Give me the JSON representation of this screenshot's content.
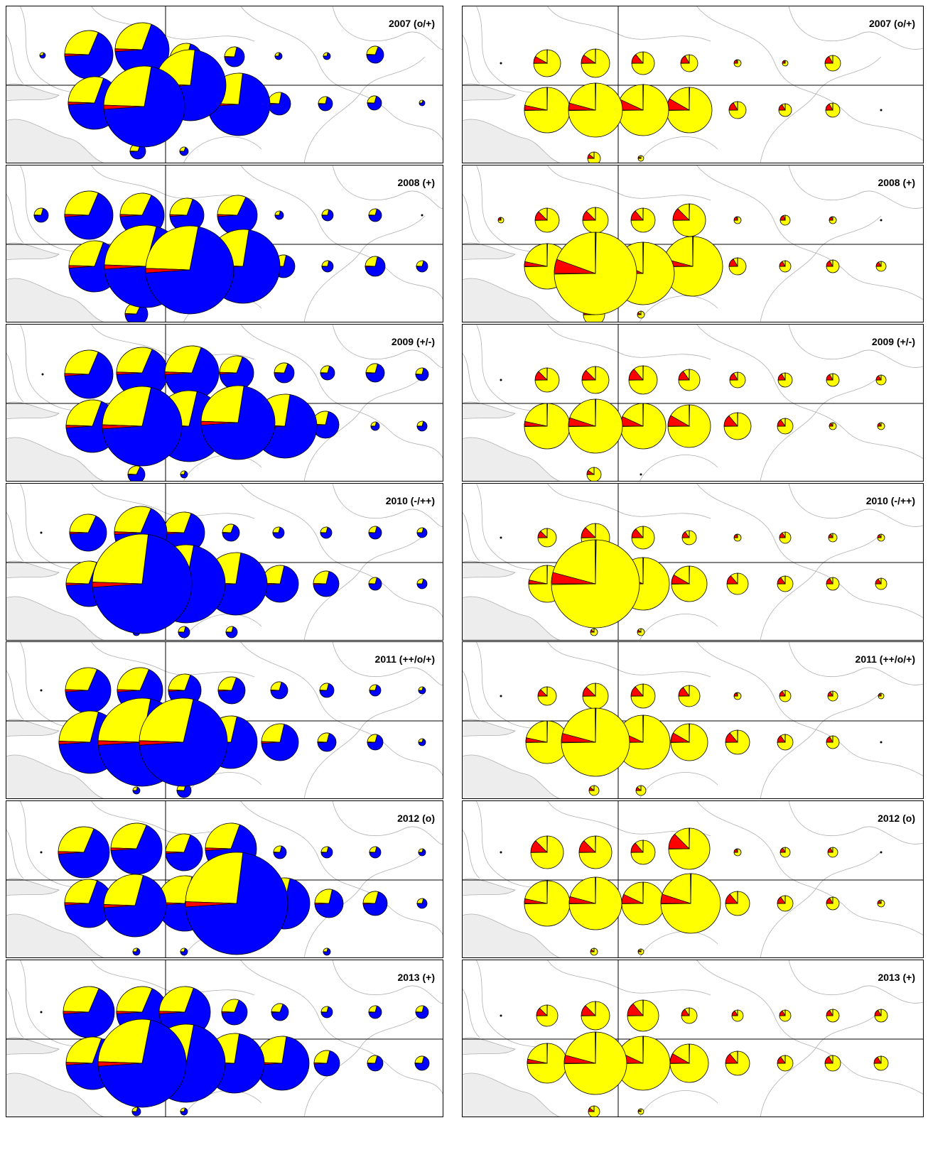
{
  "colors": {
    "blue": "#0000ff",
    "yellow": "#ffff00",
    "red": "#ff0000",
    "outline": "#000000",
    "coast": "#b0b0b0",
    "land": "#ededed"
  },
  "left_column": {
    "panels": [
      {
        "label": "2007 (o/+)"
      },
      {
        "label": "2008 (+)"
      },
      {
        "label": "2009 (+/-)"
      },
      {
        "label": "2010 (-/++)"
      },
      {
        "label": "2011 (++/o/+)"
      },
      {
        "label": "2012 (o)"
      },
      {
        "label": "2013 (+)"
      }
    ]
  },
  "right_column": {
    "panels": [
      {
        "label": "2007 (o/+)"
      },
      {
        "label": "2008 (+)"
      },
      {
        "label": "2009 (+/-)"
      },
      {
        "label": "2010 (-/++)"
      },
      {
        "label": "2011 (++/o/+)"
      },
      {
        "label": "2012 (o)"
      },
      {
        "label": "2013 (+)"
      }
    ]
  }
}
